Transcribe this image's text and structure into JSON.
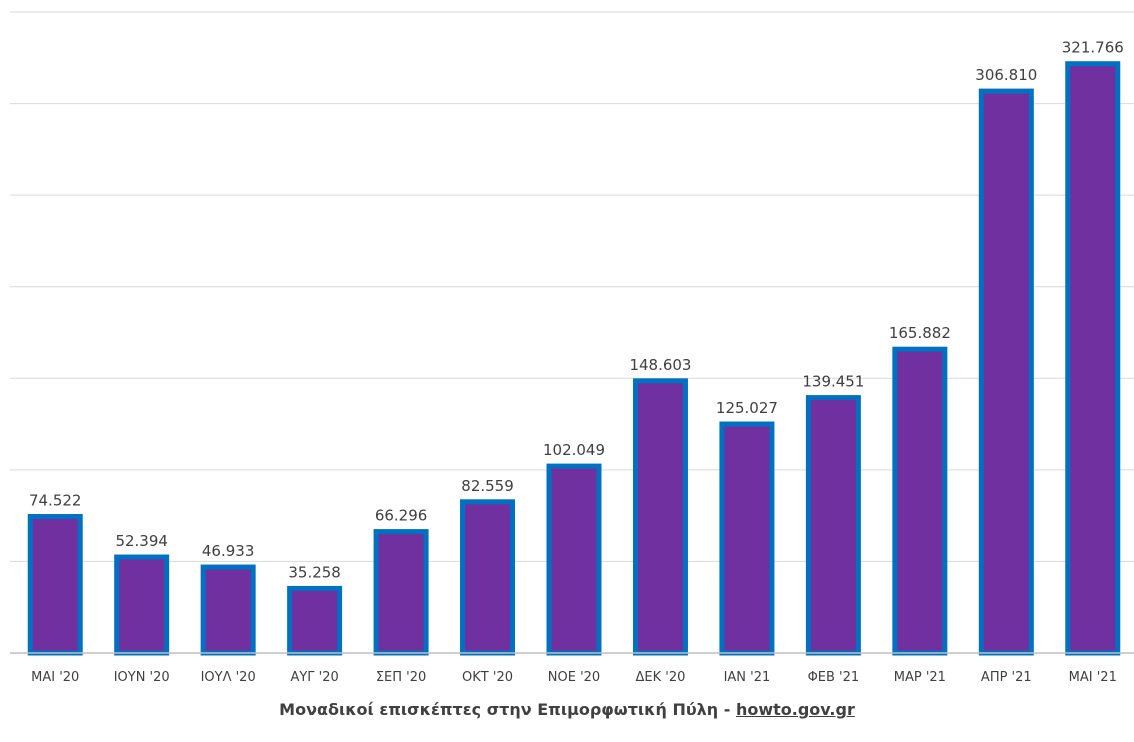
{
  "chart_data": {
    "type": "bar",
    "categories": [
      "ΜΑΙ '20",
      "ΙΟΥΝ '20",
      "ΙΟΥΛ '20",
      "ΑΥΓ '20",
      "ΣΕΠ '20",
      "ΟΚΤ '20",
      "ΝΟΕ '20",
      "ΔΕΚ '20",
      "ΙΑΝ '21",
      "ΦΕΒ '21",
      "ΜΑΡ '21",
      "ΑΠΡ '21",
      "ΜΑΙ '21"
    ],
    "values": [
      74522,
      52394,
      46933,
      35258,
      66296,
      82559,
      102049,
      148603,
      125027,
      139451,
      165882,
      306810,
      321766
    ],
    "value_labels": [
      "74.522",
      "52.394",
      "46.933",
      "35.258",
      "66.296",
      "82.559",
      "102.049",
      "148.603",
      "125.027",
      "139.451",
      "165.882",
      "306.810",
      "321.766"
    ],
    "ylim": [
      0,
      350000
    ],
    "grid": true,
    "legend": "none",
    "colors": {
      "bar_fill": "#7030a0",
      "bar_border": "#0070c0"
    }
  },
  "caption": {
    "text": "Μοναδικοί επισκέπτες στην Επιμορφωτική Πύλη - ",
    "link": "howto.gov.gr"
  }
}
